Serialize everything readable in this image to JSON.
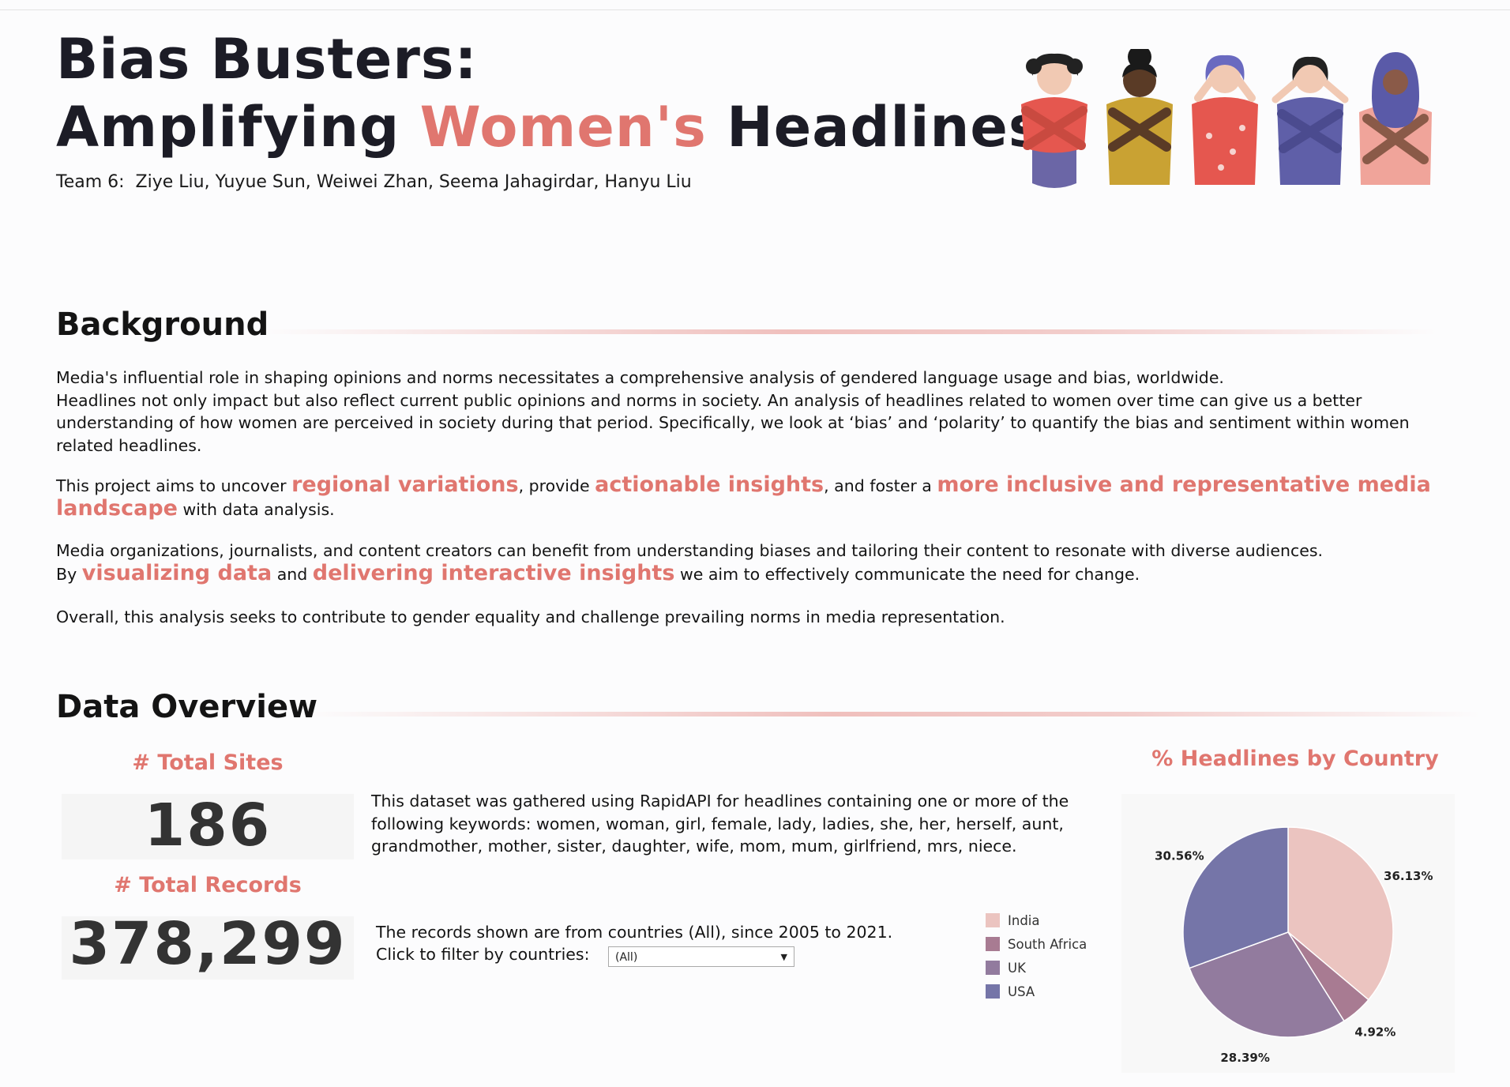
{
  "header": {
    "title_line1": "Bias Busters:",
    "title_line2_pre": "Amplifying ",
    "title_line2_accent": "Women's",
    "title_line2_post": " Headlines",
    "team": "Team 6:  Ziye Liu, Yuyue Sun, Weiwei Zhan, Seema Jahagirdar, Hanyu Liu"
  },
  "background": {
    "heading": "Background",
    "p1_line1": "Media's influential role in shaping opinions and norms necessitates a comprehensive analysis of gendered language usage and bias, worldwide.",
    "p1_rest": "Headlines not only impact but also reflect current public opinions and norms in society. An analysis of headlines related to women over time can give us a  better understanding of how women are perceived in society during that period. Specifically, we look at ‘bias’ and ‘polarity’ to quantify the bias and sentiment within women related headlines.",
    "p2_a": "This project aims to uncover ",
    "p2_hl1": "regional variations",
    "p2_b": ", provide ",
    "p2_hl2": "actionable insights",
    "p2_c": ", and foster a ",
    "p2_hl3": "more inclusive and representative media landscape",
    "p2_d": " with data analysis.",
    "p3_line1": "Media organizations, journalists, and content creators can benefit from understanding biases and tailoring their content to resonate with diverse audiences.",
    "p3_a": "By ",
    "p3_hl1": "visualizing data",
    "p3_b": " and ",
    "p3_hl2": "delivering interactive insights",
    "p3_c": " we aim to effectively communicate the need for change.",
    "p4": "Overall, this analysis seeks to contribute to gender equality and challenge prevailing norms in media representation."
  },
  "overview": {
    "heading": "Data Overview",
    "total_sites_label": "# Total Sites",
    "total_sites_value": "186",
    "total_records_label": "# Total Records",
    "total_records_value": "378,299",
    "dataset_desc": "This dataset was gathered using RapidAPI for headlines containing one or more of the following keywords: women, woman, girl, female, lady, ladies, she, her, herself, aunt, grandmother, mother, sister, daughter, wife, mom, mum, girlfriend, mrs, niece.",
    "records_line": "The records shown are from countries (All), since 2005 to 2021.",
    "filter_label": "Click to filter by countries:",
    "filter_value": "(All)"
  },
  "chart_data": {
    "type": "pie",
    "title": "% Headlines by Country",
    "categories": [
      "India",
      "South Africa",
      "UK",
      "USA"
    ],
    "values": [
      36.13,
      4.92,
      28.39,
      30.56
    ],
    "labels": [
      "36.13%",
      "4.92%",
      "28.39%",
      "30.56%"
    ],
    "colors": [
      "#ebc4c0",
      "#a87b92",
      "#927b9e",
      "#7575a8"
    ],
    "legend": "left"
  },
  "colors": {
    "accent": "#e0766f",
    "title": "#1c1c26"
  }
}
